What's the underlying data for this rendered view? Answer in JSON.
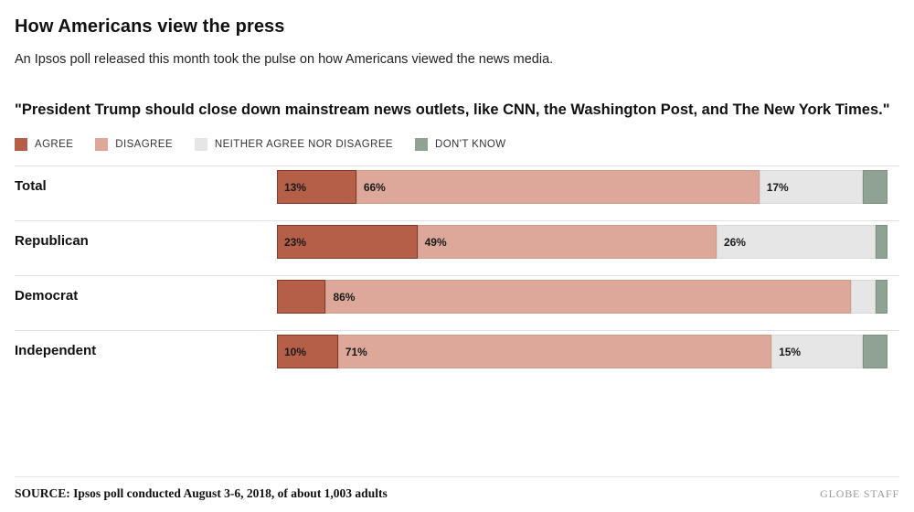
{
  "header": {
    "title": "How Americans view the press",
    "subtitle": "An Ipsos poll released this month took the pulse on how Americans viewed the news media."
  },
  "question": "\"President Trump should close down mainstream news outlets, like CNN, the Washington Post, and The New York Times.\"",
  "legend": [
    {
      "label": "AGREE",
      "color": "#b55f49"
    },
    {
      "label": "DISAGREE",
      "color": "#dda89a"
    },
    {
      "label": "NEITHER AGREE NOR DISAGREE",
      "color": "#e5e6e5"
    },
    {
      "label": "DON'T KNOW",
      "color": "#90a294"
    }
  ],
  "chart_data": {
    "type": "bar",
    "stacked": true,
    "orientation": "horizontal",
    "categories": [
      "Total",
      "Republican",
      "Democrat",
      "Independent"
    ],
    "x_range": [
      0,
      100
    ],
    "grid": false,
    "legend_position": "top",
    "series": [
      {
        "name": "Agree",
        "key": "agree",
        "color": "#b55f49",
        "border": "#823a28",
        "values": [
          13,
          23,
          8,
          10
        ],
        "labels": [
          "13%",
          "23%",
          "",
          "10%"
        ]
      },
      {
        "name": "Disagree",
        "key": "disagree",
        "color": "#dda89a",
        "border": "#cf9b8b",
        "values": [
          66,
          49,
          86,
          71
        ],
        "labels": [
          "66%",
          "49%",
          "86%",
          "71%"
        ]
      },
      {
        "name": "Neither agree nor disagree",
        "key": "neither",
        "color": "#e5e6e5",
        "border": "#d7d9d7",
        "values": [
          17,
          26,
          4,
          15
        ],
        "labels": [
          "17%",
          "26%",
          "",
          "15%"
        ]
      },
      {
        "name": "Don't know",
        "key": "dont-know",
        "color": "#90a294",
        "border": "#7e9081",
        "values": [
          4,
          2,
          2,
          4
        ],
        "labels": [
          "",
          "",
          "",
          ""
        ]
      }
    ]
  },
  "footer": {
    "source": "SOURCE: Ipsos poll conducted August 3-6, 2018, of about 1,003 adults",
    "credit": "GLOBE STAFF"
  }
}
